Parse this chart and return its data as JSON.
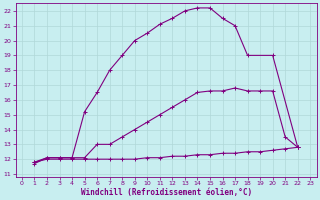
{
  "background_color": "#c8eef0",
  "line_color": "#800080",
  "grid_color": "#b0d8d8",
  "xlabel": "Windchill (Refroidissement éolien,°C)",
  "xlim": [
    -0.5,
    23.5
  ],
  "ylim": [
    10.8,
    22.5
  ],
  "yticks": [
    11,
    12,
    13,
    14,
    15,
    16,
    17,
    18,
    19,
    20,
    21,
    22
  ],
  "xticks": [
    0,
    1,
    2,
    3,
    4,
    5,
    6,
    7,
    8,
    9,
    10,
    11,
    12,
    13,
    14,
    15,
    16,
    17,
    18,
    19,
    20,
    21,
    22,
    23
  ],
  "curve1_x": [
    1,
    2,
    3,
    4,
    5,
    6,
    7,
    8,
    9,
    10,
    11,
    12,
    13,
    14,
    15,
    16,
    17,
    18,
    20,
    22
  ],
  "curve1_y": [
    11.7,
    12.1,
    12.1,
    12.1,
    15.2,
    16.5,
    18.0,
    19.0,
    20.0,
    20.5,
    21.1,
    21.5,
    22.0,
    22.2,
    22.2,
    21.5,
    21.0,
    19.0,
    19.0,
    12.8
  ],
  "curve2_x": [
    1,
    2,
    3,
    4,
    5,
    6,
    7,
    8,
    9,
    10,
    11,
    12,
    13,
    14,
    15,
    16,
    17,
    18,
    19,
    20,
    21,
    22
  ],
  "curve2_y": [
    11.8,
    12.1,
    12.1,
    12.1,
    12.1,
    13.0,
    13.0,
    13.5,
    14.0,
    14.5,
    15.0,
    15.5,
    16.0,
    16.5,
    16.6,
    16.6,
    16.8,
    16.6,
    16.6,
    16.6,
    13.5,
    12.8
  ],
  "curve3_x": [
    1,
    2,
    3,
    4,
    5,
    6,
    7,
    8,
    9,
    10,
    11,
    12,
    13,
    14,
    15,
    16,
    17,
    18,
    19,
    20,
    21,
    22
  ],
  "curve3_y": [
    11.8,
    12.0,
    12.0,
    12.0,
    12.0,
    12.0,
    12.0,
    12.0,
    12.0,
    12.1,
    12.1,
    12.2,
    12.2,
    12.3,
    12.3,
    12.4,
    12.4,
    12.5,
    12.5,
    12.6,
    12.7,
    12.8
  ],
  "marker": "+",
  "marker_size": 3,
  "linewidth": 0.8,
  "tick_fontsize": 4.5,
  "xlabel_fontsize": 5.5
}
